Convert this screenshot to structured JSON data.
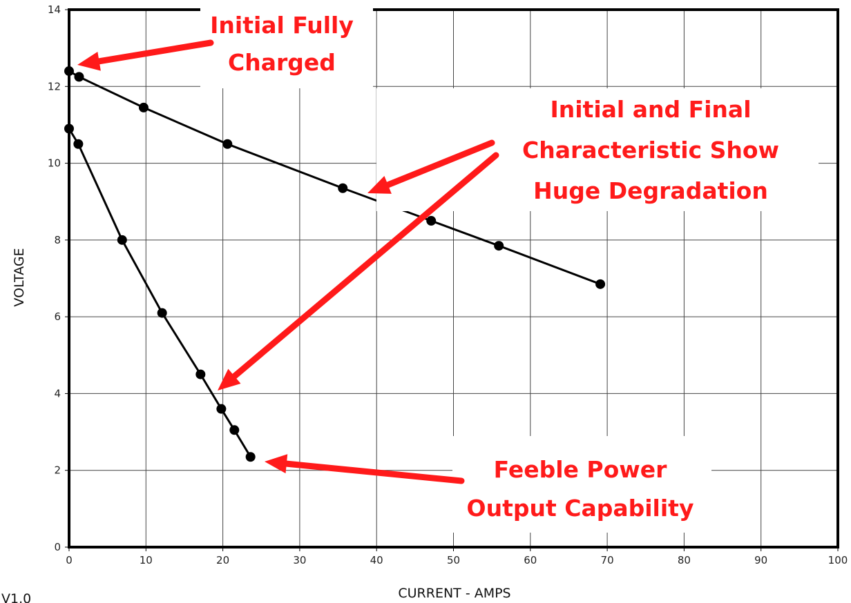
{
  "chart_data": {
    "type": "line",
    "xlabel": "CURRENT - AMPS",
    "ylabel": "VOLTAGE",
    "xlim": [
      0,
      100
    ],
    "ylim": [
      0,
      14
    ],
    "xticks": [
      "0",
      "10",
      "20",
      "30",
      "40",
      "50",
      "60",
      "70",
      "80",
      "90",
      "100"
    ],
    "yticks": [
      "0",
      "2",
      "4",
      "6",
      "8",
      "10",
      "12",
      "14"
    ],
    "grid": true,
    "version_label": "V1.0",
    "series": [
      {
        "points": [
          [
            0,
            12.4
          ],
          [
            1.3,
            12.25
          ],
          [
            9.7,
            11.45
          ],
          [
            20.6,
            10.5
          ],
          [
            35.6,
            9.35
          ],
          [
            47.1,
            8.5
          ],
          [
            55.9,
            7.85
          ],
          [
            69.1,
            6.85
          ]
        ],
        "color": "#000000"
      },
      {
        "points": [
          [
            0,
            10.9
          ],
          [
            1.2,
            10.5
          ],
          [
            6.9,
            8.0
          ],
          [
            12.1,
            6.1
          ],
          [
            17.1,
            4.5
          ],
          [
            19.8,
            3.6
          ],
          [
            21.5,
            3.05
          ],
          [
            23.6,
            2.35
          ]
        ],
        "color": "#000000"
      }
    ],
    "annotations": [
      {
        "lines": [
          "Initial Fully",
          "Charged"
        ],
        "color": "#ff1a1a"
      },
      {
        "lines": [
          "Initial and Final",
          "Characteristic Show",
          "Huge Degradation"
        ],
        "color": "#ff1a1a"
      },
      {
        "lines": [
          "Feeble Power",
          "Output Capability"
        ],
        "color": "#ff1a1a"
      }
    ]
  }
}
